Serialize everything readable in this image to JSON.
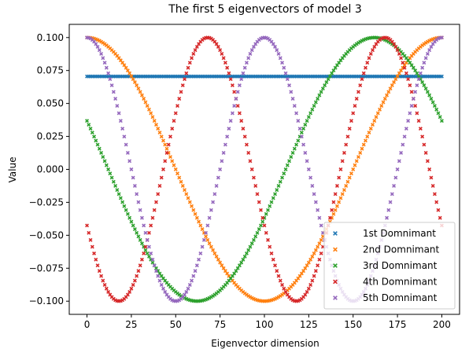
{
  "chart_data": {
    "type": "scatter",
    "title": "The first 5 eigenvectors of model 3",
    "xlabel": "Eigenvector dimension",
    "ylabel": "Value",
    "xlim": [
      -10,
      210
    ],
    "ylim": [
      -0.11,
      0.11
    ],
    "x_ticks": [
      0,
      25,
      50,
      75,
      100,
      125,
      150,
      175,
      200
    ],
    "x_tick_labels": [
      "0",
      "25",
      "50",
      "75",
      "100",
      "125",
      "150",
      "175",
      "200"
    ],
    "y_ticks": [
      -0.1,
      -0.075,
      -0.05,
      -0.025,
      0.0,
      0.025,
      0.05,
      0.075,
      0.1
    ],
    "y_tick_labels": [
      "−0.100",
      "−0.075",
      "−0.050",
      "−0.025",
      "0.000",
      "0.025",
      "0.050",
      "0.075",
      "0.100"
    ],
    "grid": false,
    "legend_position": "lower-right",
    "marker": "x",
    "x": {
      "start": 0,
      "end": 200,
      "step": 1
    },
    "series": [
      {
        "name": "1st Domnimant",
        "color": "#1f77b4",
        "form": "constant",
        "value": 0.0705
      },
      {
        "name": "2nd Domnimant",
        "color": "#ff7f0e",
        "form": "cosine",
        "amplitude": 0.1,
        "period": 200,
        "phase_x": 0
      },
      {
        "name": "3rd Domnimant",
        "color": "#2ca02c",
        "form": "cosine",
        "amplitude": 0.1,
        "period": 200,
        "phase_x": 162,
        "x_range": [
          0,
          200
        ]
      },
      {
        "name": "4th Domnimant",
        "color": "#d62728",
        "form": "cosine",
        "amplitude": 0.1,
        "period": 100,
        "phase_x": 68
      },
      {
        "name": "5th Domnimant",
        "color": "#9467bd",
        "form": "cosine",
        "amplitude": 0.1,
        "period": 100,
        "phase_x": 0
      }
    ]
  }
}
